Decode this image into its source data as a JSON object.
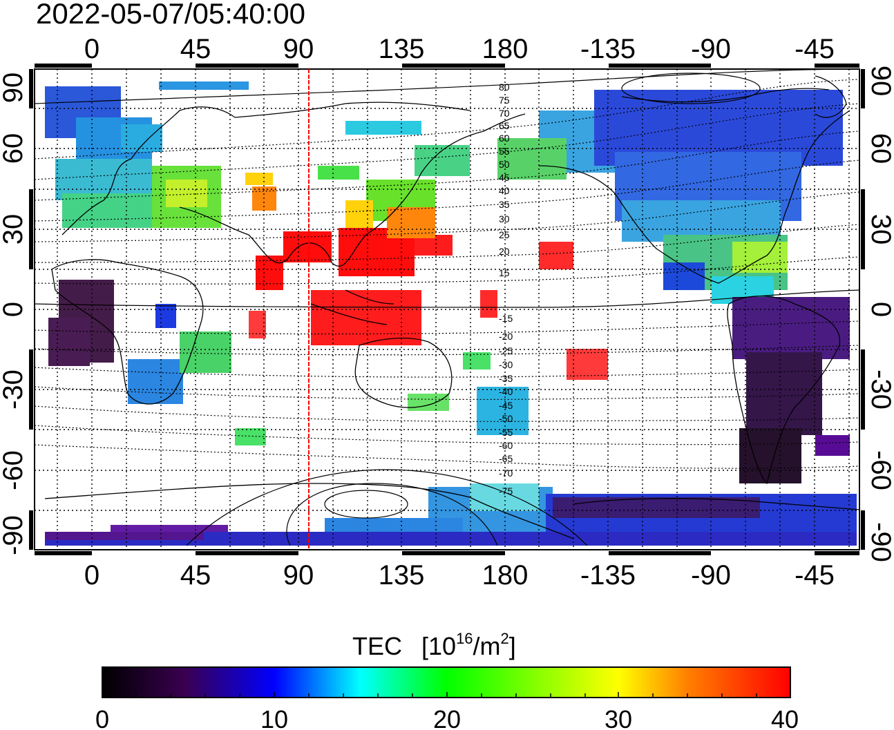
{
  "timestamp": "2022-05-07/05:40:00",
  "map": {
    "lon_ticks": [
      "0",
      "45",
      "90",
      "135",
      "180",
      "-135",
      "-90",
      "-45"
    ],
    "lat_ticks": [
      "90",
      "60",
      "30",
      "0",
      "-30",
      "-60",
      "-90"
    ],
    "subsolar_line_longitude": 95,
    "magnetic_latitude_labels_north": [
      "80",
      "75",
      "70",
      "65",
      "60",
      "55",
      "50",
      "45",
      "40",
      "35",
      "30",
      "25",
      "20",
      "15"
    ],
    "magnetic_latitude_labels_south": [
      "-15",
      "-20",
      "-25",
      "-30",
      "-35",
      "-40",
      "-45",
      "-50",
      "-55",
      "-60",
      "-65",
      "-70",
      "-75"
    ],
    "colors": {
      "line": "#ff0000",
      "grid": "#000000"
    }
  },
  "colorbar": {
    "title": "TEC",
    "unit_prefix": "[10",
    "unit_exp": "16",
    "unit_mid": "/m",
    "unit_exp2": "2",
    "unit_suffix": "]",
    "ticks": [
      "0",
      "10",
      "20",
      "30",
      "40"
    ],
    "range": [
      0,
      40
    ]
  }
}
